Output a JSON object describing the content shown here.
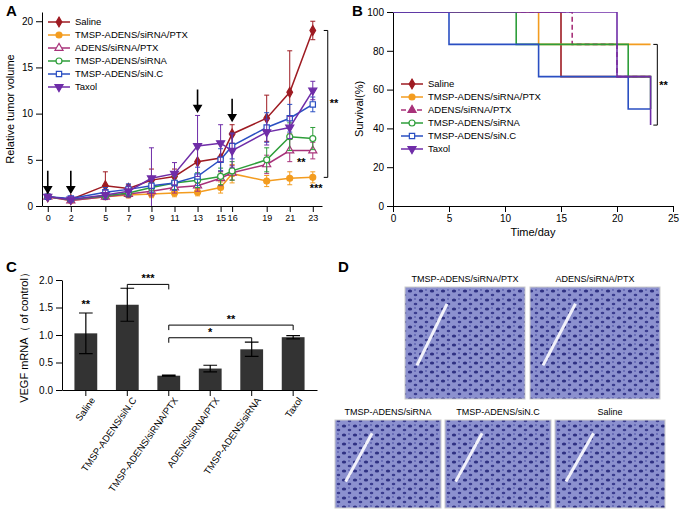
{
  "chart_data": [
    {
      "panel": "A",
      "type": "line",
      "ylabel": "Relative tumor volume",
      "x": [
        0,
        2,
        5,
        7,
        9,
        11,
        13,
        15,
        16,
        19,
        21,
        23
      ],
      "xlim": [
        -0.5,
        23.8
      ],
      "xticks": [
        0,
        2,
        5,
        7,
        9,
        11,
        13,
        15,
        16,
        19,
        21,
        23
      ],
      "ylim": [
        0,
        21
      ],
      "yticks": [
        0,
        5,
        10,
        15,
        20
      ],
      "legend": "upper left",
      "arrows": [
        0,
        2,
        13,
        16
      ],
      "annotations": [
        {
          "text": "**",
          "x": 24.3,
          "y": 11,
          "span": [
            19,
            3.1
          ]
        },
        {
          "text": "**",
          "x": 22,
          "y": 4.3
        },
        {
          "text": "***",
          "x": 23.3,
          "y": 1.5
        }
      ],
      "series": [
        {
          "name": "Saline",
          "color": "#9e1b22",
          "marker": "diamond",
          "line_style": "solid",
          "values": [
            1,
            0.7,
            2.2,
            1.9,
            2.8,
            3.2,
            4.8,
            5.2,
            7.8,
            9.5,
            12.3,
            19.0
          ],
          "errors": [
            0,
            0.3,
            1.5,
            0.4,
            1.2,
            0.8,
            1.5,
            1.5,
            1.0,
            2.5,
            4.5,
            1.0
          ]
        },
        {
          "name": "TMSP-ADENS/siRNA/PTX",
          "color": "#f39c1f",
          "marker": "circle",
          "line_style": "solid",
          "values": [
            1,
            0.6,
            1.0,
            1.2,
            1.3,
            1.4,
            1.5,
            2.0,
            3.5,
            2.7,
            3.0,
            3.1
          ],
          "errors": [
            0,
            0.2,
            0.3,
            0.3,
            0.4,
            0.4,
            0.4,
            0.6,
            1.0,
            0.6,
            0.7,
            0.6
          ]
        },
        {
          "name": "ADENS/siRNA/PTX",
          "color": "#a8327a",
          "marker": "open-triangle",
          "line_style": "solid",
          "values": [
            1,
            0.6,
            1.0,
            1.3,
            1.6,
            2.0,
            2.2,
            3.0,
            3.6,
            4.5,
            6.0,
            6.0
          ],
          "errors": [
            0,
            0.2,
            0.3,
            0.4,
            0.5,
            0.6,
            0.6,
            0.8,
            0.8,
            1.0,
            1.2,
            0.9
          ]
        },
        {
          "name": "TMSP-ADENS/siRNA",
          "color": "#2e9e3a",
          "marker": "open-circle",
          "line_style": "solid",
          "values": [
            1,
            0.7,
            1.1,
            1.4,
            2.0,
            2.5,
            2.8,
            3.2,
            3.8,
            5.0,
            7.5,
            7.3
          ],
          "errors": [
            0,
            0.2,
            0.3,
            0.4,
            0.5,
            0.7,
            0.8,
            0.9,
            1.0,
            1.3,
            1.5,
            1.2
          ]
        },
        {
          "name": "TMSP-ADENS/siN.C",
          "color": "#2a4fc2",
          "marker": "open-square",
          "line_style": "solid",
          "values": [
            1,
            0.8,
            1.5,
            1.8,
            2.2,
            2.5,
            3.2,
            5.0,
            6.5,
            8.5,
            9.5,
            11.0
          ],
          "errors": [
            0,
            0.2,
            0.5,
            0.6,
            0.7,
            0.8,
            1.0,
            1.2,
            1.4,
            1.6,
            1.5,
            0.8
          ]
        },
        {
          "name": "Taxol",
          "color": "#6f2da8",
          "marker": "triangle-down",
          "line_style": "solid",
          "values": [
            1,
            0.7,
            1.2,
            1.6,
            3.0,
            3.5,
            6.5,
            6.8,
            6.0,
            8.0,
            8.5,
            12.5
          ],
          "errors": [
            0,
            0.3,
            0.5,
            0.6,
            3.3,
            1.2,
            3.3,
            2.0,
            1.8,
            1.4,
            1.2,
            1.0
          ]
        }
      ]
    },
    {
      "panel": "B",
      "type": "step",
      "xlabel": "Time/day",
      "ylabel": "Survival(%)",
      "xlim": [
        0,
        25
      ],
      "xticks": [
        0,
        5,
        10,
        15,
        20,
        25
      ],
      "ylim": [
        0,
        100
      ],
      "yticks": [
        0,
        20,
        40,
        60,
        80,
        100
      ],
      "legend": "center left",
      "annotations": [
        {
          "text": "**",
          "x": 23.6,
          "y": 62,
          "span": [
            83.3,
            41.7
          ]
        }
      ],
      "series": [
        {
          "name": "Saline",
          "color": "#9e1b22",
          "marker": "diamond",
          "line_style": "solid",
          "x": [
            0,
            15,
            23
          ],
          "values": [
            100,
            66.7,
            66.7
          ]
        },
        {
          "name": "TMSP-ADENS/siRNA/PTX",
          "color": "#f39c1f",
          "marker": "circle",
          "line_style": "solid",
          "x": [
            0,
            13,
            23
          ],
          "values": [
            100,
            83.3,
            83.3
          ]
        },
        {
          "name": "ADENS/siRNA/PTX",
          "color": "#a8327a",
          "marker": "triangle",
          "line_style": "dashed",
          "x": [
            0,
            16,
            20,
            23
          ],
          "values": [
            100,
            83.3,
            66.7,
            66.7
          ]
        },
        {
          "name": "TMSP-ADENS/siRNA",
          "color": "#2e9e3a",
          "marker": "open-circle",
          "line_style": "solid",
          "x": [
            0,
            11,
            21,
            23
          ],
          "values": [
            100,
            83.3,
            66.7,
            50
          ]
        },
        {
          "name": "TMSP-ADENS/siN.C",
          "color": "#2a4fc2",
          "marker": "open-square",
          "line_style": "solid",
          "x": [
            0,
            5,
            13,
            21,
            23
          ],
          "values": [
            100,
            83.3,
            66.7,
            50,
            50
          ]
        },
        {
          "name": "Taxol",
          "color": "#6f2da8",
          "marker": "triangle-down",
          "line_style": "solid",
          "x": [
            0,
            20,
            23
          ],
          "values": [
            100,
            66.7,
            41.7
          ]
        }
      ]
    },
    {
      "panel": "C",
      "type": "bar",
      "ylabel": "VEGF mRNA（ of control）",
      "categories": [
        "Saline",
        "TMSP-ADENS/siN.C",
        "TMSP-ADENS/siRNA/PTX",
        "ADENS/siRNA/PTX",
        "TMSP-ADENS/siRNA",
        "Taxol"
      ],
      "values": [
        1.03,
        1.55,
        0.26,
        0.39,
        0.74,
        0.96
      ],
      "errors": [
        0.37,
        0.3,
        0.01,
        0.06,
        0.13,
        0.03
      ],
      "color": "#333333",
      "ylim": [
        0,
        2.0
      ],
      "yticks": [
        {
          "value": 0,
          "label": "0.0"
        },
        {
          "value": 0.5,
          "label": "0.5"
        },
        {
          "value": 1.0,
          "label": "1.0"
        },
        {
          "value": 1.5,
          "label": "1.5"
        },
        {
          "value": 2.0,
          "label": "2.0"
        }
      ],
      "annotations": [
        {
          "text": "**",
          "from": 0,
          "to": 0,
          "y": 1.45
        },
        {
          "text": "***",
          "from": 1,
          "to": 2,
          "y": 1.92
        },
        {
          "text": "*",
          "from": 2,
          "to": 4,
          "y": 0.95
        },
        {
          "text": "**",
          "from": 2,
          "to": 5,
          "y": 1.18
        }
      ]
    },
    {
      "panel": "D",
      "type": "image",
      "labels": [
        "TMSP-ADENS/siRNA/PTX",
        "ADENS/siRNA/PTX",
        "TMSP-ADENS/siRNA",
        "TMSP-ADENS/siN.C",
        "Saline"
      ]
    }
  ]
}
